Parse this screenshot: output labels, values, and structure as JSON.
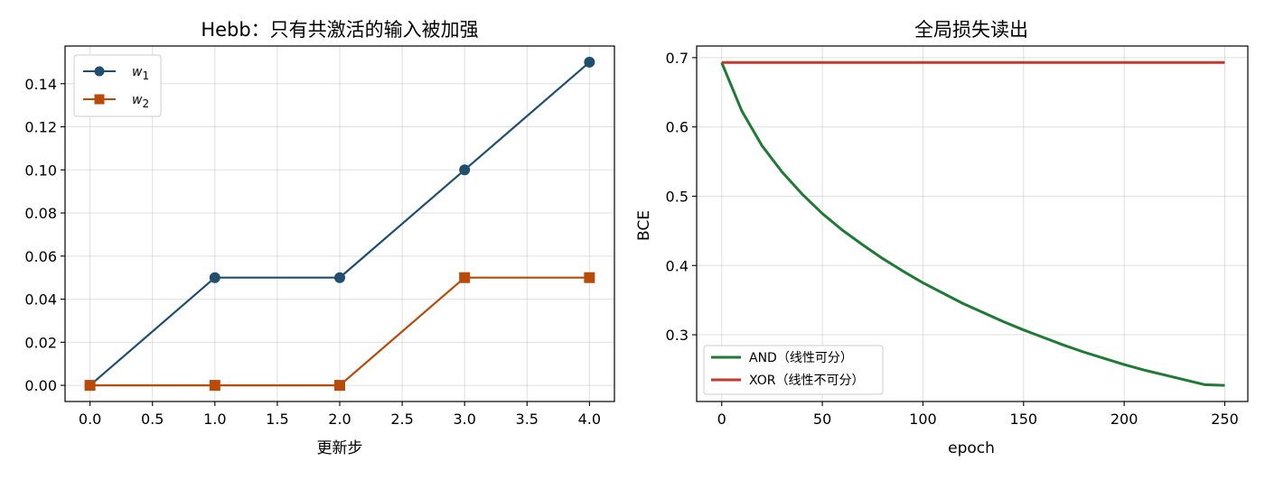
{
  "chart_data": [
    {
      "type": "line",
      "title": "Hebb：只有共激活的输入被加强",
      "xlabel": "更新步",
      "ylabel": "",
      "x": [
        0,
        1,
        2,
        3,
        4
      ],
      "xlim": [
        -0.2,
        4.2
      ],
      "ylim": [
        -0.0075,
        0.1575
      ],
      "xticks": [
        "0.0",
        "0.5",
        "1.0",
        "1.5",
        "2.0",
        "2.5",
        "3.0",
        "3.5",
        "4.0"
      ],
      "xtick_values": [
        0,
        0.5,
        1,
        1.5,
        2,
        2.5,
        3,
        3.5,
        4
      ],
      "yticks": [
        "0.00",
        "0.02",
        "0.04",
        "0.06",
        "0.08",
        "0.10",
        "0.12",
        "0.14"
      ],
      "ytick_values": [
        0,
        0.02,
        0.04,
        0.06,
        0.08,
        0.1,
        0.12,
        0.14
      ],
      "grid": true,
      "legend_position": "top-left",
      "series": [
        {
          "name": "w",
          "sub": "1",
          "marker": "circle",
          "color": "#1f4e6e",
          "values": [
            0,
            0.05,
            0.05,
            0.1,
            0.15
          ]
        },
        {
          "name": "w",
          "sub": "2",
          "marker": "square",
          "color": "#b84a0a",
          "values": [
            0,
            0,
            0,
            0.05,
            0.05
          ]
        }
      ]
    },
    {
      "type": "line",
      "title": "全局损失读出",
      "xlabel": "epoch",
      "ylabel": "BCE",
      "xlim": [
        -12.45,
        261.45
      ],
      "ylim": [
        0.2037,
        0.7168
      ],
      "xticks": [
        "0",
        "50",
        "100",
        "150",
        "200",
        "250"
      ],
      "xtick_values": [
        0,
        50,
        100,
        150,
        200,
        250
      ],
      "yticks": [
        "0.3",
        "0.4",
        "0.5",
        "0.6",
        "0.7"
      ],
      "ytick_values": [
        0.3,
        0.4,
        0.5,
        0.6,
        0.7
      ],
      "grid": true,
      "legend_position": "bottom-left",
      "series": [
        {
          "name": "AND（线性可分）",
          "color": "#1e7a34",
          "x": [
            0,
            10,
            20,
            30,
            40,
            50,
            60,
            70,
            80,
            90,
            100,
            110,
            120,
            130,
            140,
            150,
            160,
            170,
            180,
            190,
            200,
            210,
            220,
            230,
            240,
            250
          ],
          "values": [
            0.693,
            0.623,
            0.573,
            0.535,
            0.503,
            0.475,
            0.451,
            0.43,
            0.41,
            0.392,
            0.375,
            0.36,
            0.345,
            0.332,
            0.319,
            0.307,
            0.296,
            0.285,
            0.275,
            0.266,
            0.257,
            0.249,
            0.242,
            0.235,
            0.228,
            0.227
          ]
        },
        {
          "name": "XOR（线性不可分）",
          "color": "#c0392b",
          "x": [
            0,
            250
          ],
          "values": [
            0.693,
            0.693
          ]
        }
      ]
    }
  ]
}
